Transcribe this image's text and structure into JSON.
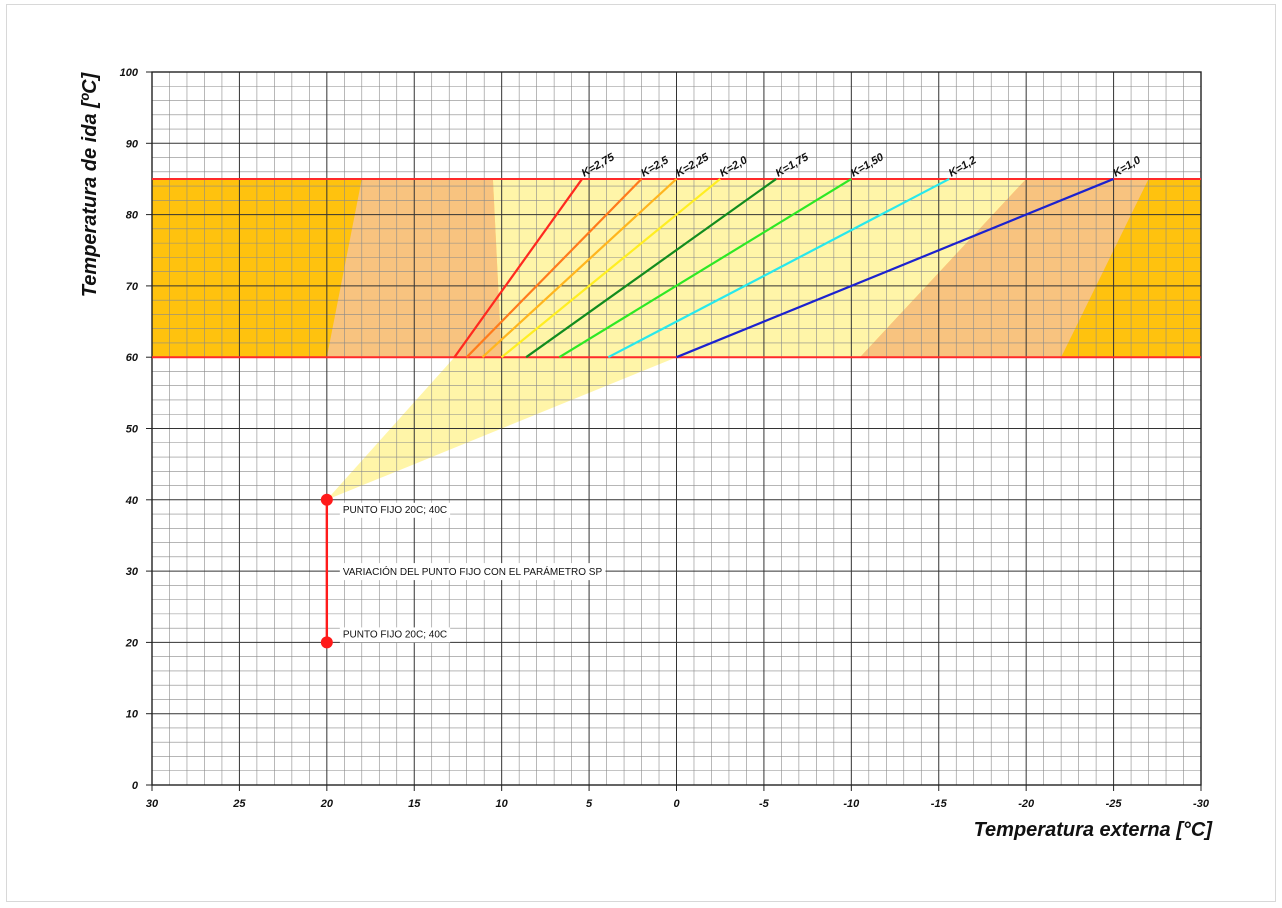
{
  "chart_data": {
    "type": "line",
    "ylabel": "Temperatura de ida [ºC]",
    "xlabel": "Temperatura externa [°C]",
    "xlim": [
      30,
      -30
    ],
    "ylim": [
      0,
      100
    ],
    "x_ticks": [
      "30",
      "25",
      "20",
      "15",
      "10",
      "5",
      "0",
      "-5",
      "-10",
      "-15",
      "-20",
      "-25",
      "-30"
    ],
    "y_ticks": [
      "0",
      "10",
      "20",
      "30",
      "40",
      "50",
      "60",
      "70",
      "80",
      "90",
      "100"
    ],
    "grid": true,
    "band": {
      "y_min": 60,
      "y_max": 85,
      "fill": "#ffc20e",
      "border": "#ff2a2a"
    },
    "fixed_point": {
      "x": 20,
      "y": 40
    },
    "series": [
      {
        "name": "K=2,75",
        "color": "#ff2a1f",
        "x": [
          12.7,
          5.4
        ],
        "y": [
          60,
          85
        ]
      },
      {
        "name": "K=2,5",
        "color": "#ff7b1c",
        "x": [
          12.0,
          2.0
        ],
        "y": [
          60,
          85
        ]
      },
      {
        "name": "K=2,25",
        "color": "#ffb51e",
        "x": [
          11.1,
          0.0
        ],
        "y": [
          60,
          85
        ]
      },
      {
        "name": "K=2,0",
        "color": "#ffee22",
        "x": [
          10.0,
          -2.5
        ],
        "y": [
          60,
          85
        ]
      },
      {
        "name": "K=1,75",
        "color": "#138c1e",
        "x": [
          8.6,
          -5.7
        ],
        "y": [
          60,
          85
        ]
      },
      {
        "name": "K=1,50",
        "color": "#2ee825",
        "x": [
          6.7,
          -10.0
        ],
        "y": [
          60,
          85
        ]
      },
      {
        "name": "K=1,2",
        "color": "#28e8ec",
        "x": [
          3.9,
          -15.6
        ],
        "y": [
          60,
          85
        ]
      },
      {
        "name": "K=1,0",
        "color": "#1c22cf",
        "x": [
          0.0,
          -25.0
        ],
        "y": [
          60,
          85
        ]
      }
    ],
    "sp_variation": {
      "x": 20,
      "y_min": 20,
      "y_max": 40,
      "color": "#ff1a1a"
    },
    "annotations": [
      {
        "text": "PUNTO FIJO 20C; 40C",
        "x": 20,
        "y": 40
      },
      {
        "text": "VARIACIÓN DEL PUNTO FIJO CON EL PARÁMETRO SP",
        "x": 20,
        "y": 30
      },
      {
        "text": "PUNTO FIJO 20C; 40C",
        "x": 20,
        "y": 20
      }
    ]
  }
}
